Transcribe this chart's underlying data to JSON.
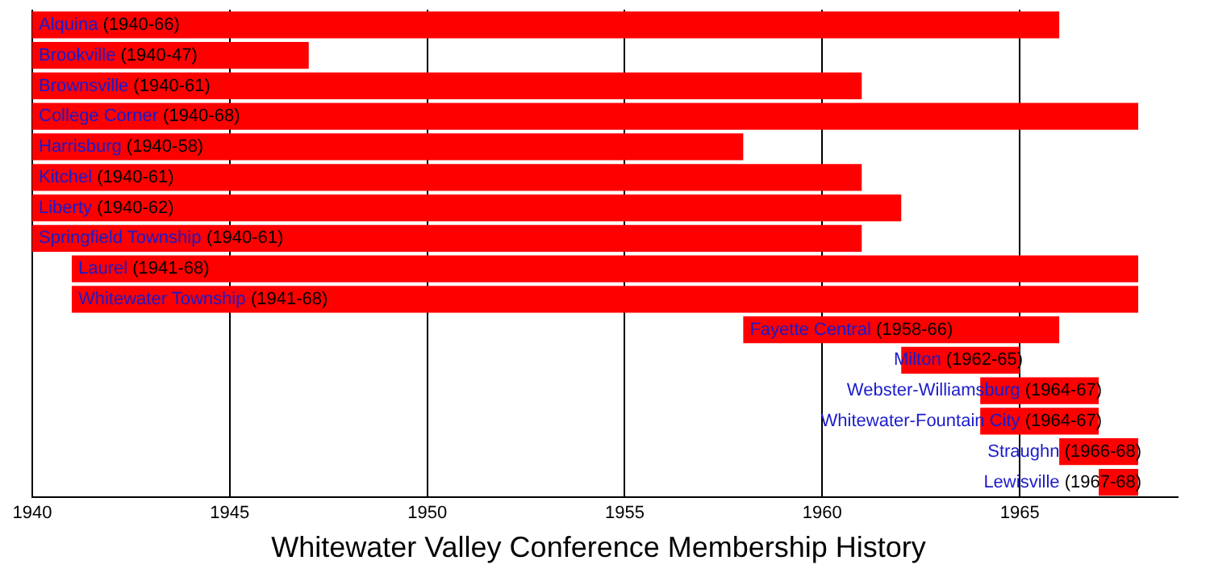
{
  "chart_data": {
    "type": "bar",
    "orientation": "horizontal",
    "title": "Whitewater Valley Conference Membership History",
    "categories": [
      "Alquina",
      "Brookville",
      "Brownsville",
      "College Corner",
      "Harrisburg",
      "Kitchel",
      "Liberty",
      "Springfield Township",
      "Laurel",
      "Whitewater Township",
      "Fayette Central",
      "Milton",
      "Webster-Williamsburg",
      "Whitewater-Fountain City",
      "Straughn",
      "Lewisville"
    ],
    "base": [
      1940,
      1940,
      1940,
      1940,
      1940,
      1940,
      1940,
      1940,
      1941,
      1941,
      1958,
      1962,
      1964,
      1964,
      1966,
      1967
    ],
    "values": [
      26,
      7,
      21,
      28,
      18,
      21,
      22,
      21,
      27,
      27,
      8,
      3,
      3,
      3,
      2,
      1
    ],
    "value_labels": [
      "(1940-66)",
      "(1940-47)",
      "(1940-61)",
      "(1940-68)",
      "(1940-58)",
      "(1940-61)",
      "(1940-62)",
      "(1940-61)",
      "(1941-68)",
      "(1941-68)",
      "(1958-66)",
      "(1962-65)",
      "(1964-67)",
      "(1964-67)",
      "(1966-68)",
      "(1967-68)"
    ],
    "color": "#ff0000",
    "xlim": [
      1940,
      1969
    ],
    "xticks": [
      1940,
      1945,
      1950,
      1955,
      1960,
      1965
    ],
    "grid": "x",
    "legend": false
  }
}
